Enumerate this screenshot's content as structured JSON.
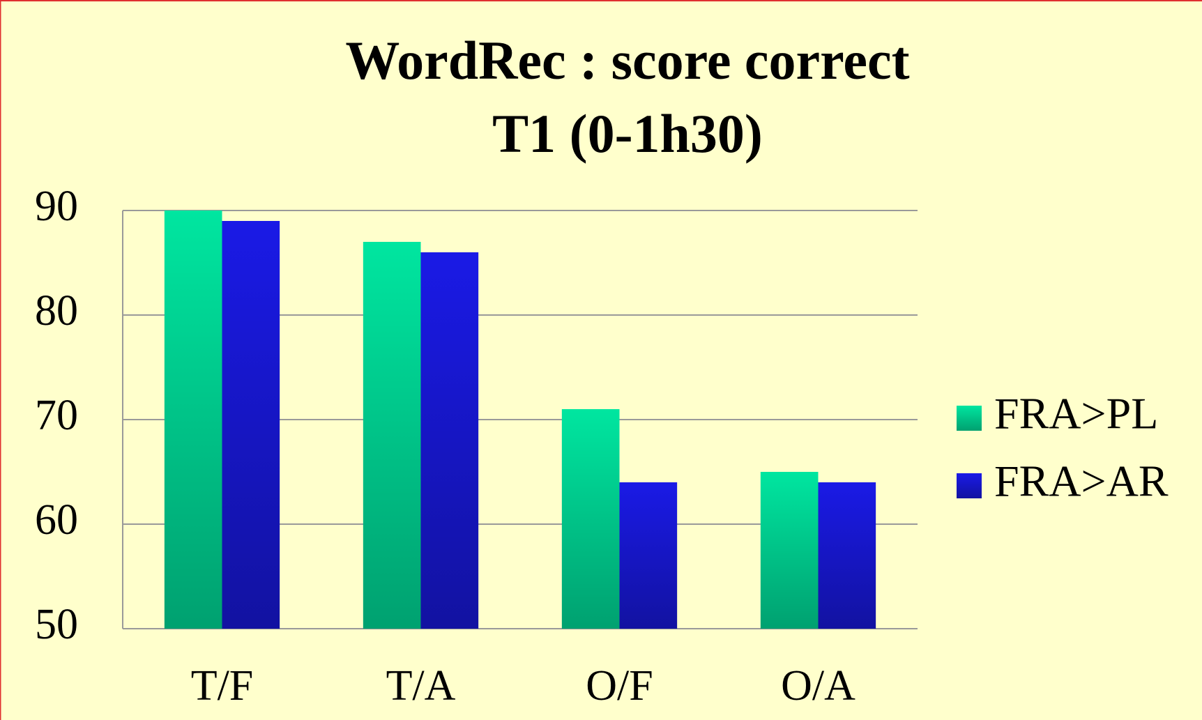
{
  "chart_data": {
    "type": "bar",
    "title": [
      "WordRec : score correct",
      "T1 (0-1h30)"
    ],
    "categories": [
      "T/F",
      "T/A",
      "O/F",
      "O/A"
    ],
    "series": [
      {
        "name": "FRA>PL",
        "color": "#00e6a0",
        "values": [
          90,
          87,
          71,
          65
        ]
      },
      {
        "name": "FRA>AR",
        "color": "#1a1ae6",
        "values": [
          89,
          86,
          64,
          64
        ]
      }
    ],
    "ylim": [
      50,
      90
    ],
    "yticks": [
      50,
      60,
      70,
      80,
      90
    ],
    "grid": true,
    "legend": "right"
  }
}
